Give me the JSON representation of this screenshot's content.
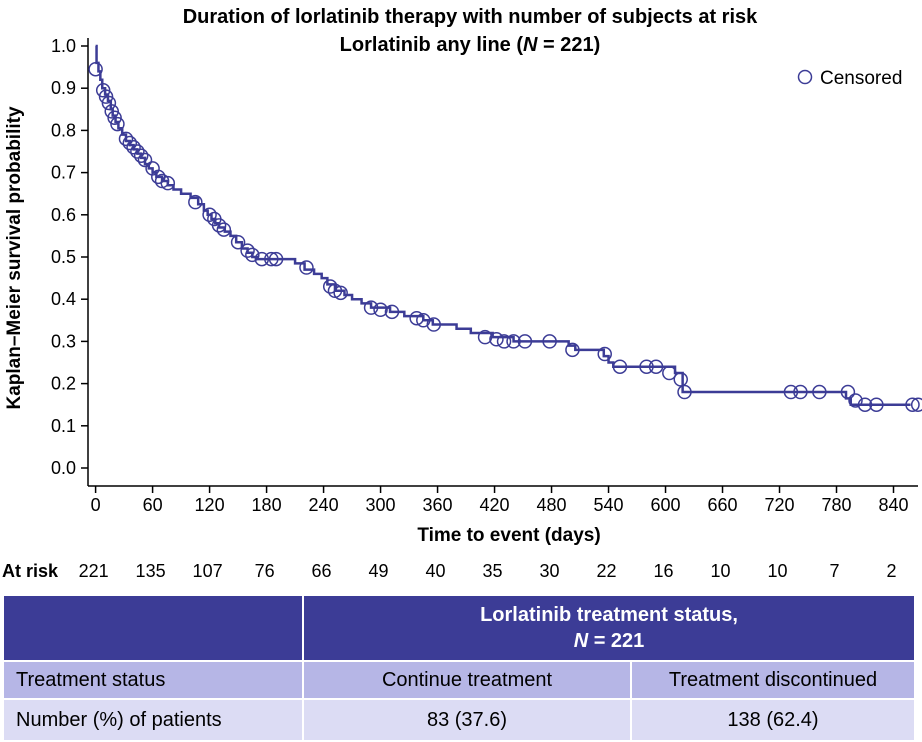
{
  "chart_data": {
    "type": "line",
    "subtype": "kaplan-meier",
    "title": "Duration of lorlatinib therapy with number of subjects at risk",
    "subtitle_prefix": "Lorlatinib any line (",
    "subtitle_n": "N",
    "subtitle_suffix": " = 221)",
    "xlabel": "Time to event (days)",
    "ylabel": "Kaplan–Meier survival probability",
    "xlim": [
      -8,
      870
    ],
    "ylim": [
      0.0,
      1.0
    ],
    "x_ticks": [
      0,
      60,
      120,
      180,
      240,
      300,
      360,
      420,
      480,
      540,
      600,
      660,
      720,
      780,
      840
    ],
    "y_ticks": [
      "0.0",
      "0.1",
      "0.2",
      "0.3",
      "0.4",
      "0.5",
      "0.6",
      "0.7",
      "0.8",
      "0.9",
      "1.0"
    ],
    "legend": {
      "label": "Censored",
      "position": "top-right"
    },
    "line_color": "#3c3c96",
    "curve": [
      [
        0,
        1.0
      ],
      [
        1,
        0.96
      ],
      [
        3,
        0.94
      ],
      [
        5,
        0.92
      ],
      [
        7,
        0.9
      ],
      [
        10,
        0.885
      ],
      [
        13,
        0.87
      ],
      [
        16,
        0.85
      ],
      [
        18,
        0.835
      ],
      [
        21,
        0.82
      ],
      [
        24,
        0.805
      ],
      [
        28,
        0.79
      ],
      [
        32,
        0.775
      ],
      [
        36,
        0.765
      ],
      [
        40,
        0.755
      ],
      [
        44,
        0.745
      ],
      [
        48,
        0.735
      ],
      [
        52,
        0.72
      ],
      [
        56,
        0.71
      ],
      [
        60,
        0.7
      ],
      [
        64,
        0.69
      ],
      [
        70,
        0.68
      ],
      [
        76,
        0.67
      ],
      [
        82,
        0.66
      ],
      [
        90,
        0.65
      ],
      [
        100,
        0.64
      ],
      [
        108,
        0.625
      ],
      [
        114,
        0.61
      ],
      [
        118,
        0.6
      ],
      [
        122,
        0.59
      ],
      [
        126,
        0.58
      ],
      [
        130,
        0.57
      ],
      [
        136,
        0.56
      ],
      [
        142,
        0.55
      ],
      [
        148,
        0.535
      ],
      [
        154,
        0.52
      ],
      [
        160,
        0.51
      ],
      [
        165,
        0.5
      ],
      [
        170,
        0.495
      ],
      [
        210,
        0.485
      ],
      [
        220,
        0.47
      ],
      [
        230,
        0.46
      ],
      [
        238,
        0.45
      ],
      [
        244,
        0.435
      ],
      [
        252,
        0.42
      ],
      [
        262,
        0.41
      ],
      [
        270,
        0.4
      ],
      [
        280,
        0.39
      ],
      [
        290,
        0.38
      ],
      [
        310,
        0.37
      ],
      [
        325,
        0.36
      ],
      [
        345,
        0.35
      ],
      [
        355,
        0.34
      ],
      [
        380,
        0.33
      ],
      [
        395,
        0.32
      ],
      [
        418,
        0.31
      ],
      [
        440,
        0.3
      ],
      [
        498,
        0.29
      ],
      [
        505,
        0.28
      ],
      [
        535,
        0.265
      ],
      [
        540,
        0.25
      ],
      [
        545,
        0.24
      ],
      [
        610,
        0.225
      ],
      [
        618,
        0.18
      ],
      [
        790,
        0.165
      ],
      [
        795,
        0.15
      ],
      [
        858,
        0.15
      ]
    ],
    "censored": [
      [
        0,
        0.945
      ],
      [
        8,
        0.895
      ],
      [
        11,
        0.88
      ],
      [
        14,
        0.865
      ],
      [
        17,
        0.845
      ],
      [
        20,
        0.83
      ],
      [
        23,
        0.815
      ],
      [
        32,
        0.78
      ],
      [
        36,
        0.77
      ],
      [
        40,
        0.76
      ],
      [
        44,
        0.75
      ],
      [
        48,
        0.74
      ],
      [
        52,
        0.73
      ],
      [
        60,
        0.71
      ],
      [
        66,
        0.69
      ],
      [
        70,
        0.68
      ],
      [
        76,
        0.675
      ],
      [
        105,
        0.63
      ],
      [
        120,
        0.6
      ],
      [
        125,
        0.59
      ],
      [
        130,
        0.575
      ],
      [
        135,
        0.565
      ],
      [
        150,
        0.535
      ],
      [
        160,
        0.515
      ],
      [
        165,
        0.505
      ],
      [
        175,
        0.495
      ],
      [
        185,
        0.495
      ],
      [
        190,
        0.495
      ],
      [
        222,
        0.475
      ],
      [
        247,
        0.43
      ],
      [
        252,
        0.42
      ],
      [
        258,
        0.415
      ],
      [
        290,
        0.38
      ],
      [
        300,
        0.375
      ],
      [
        312,
        0.37
      ],
      [
        338,
        0.355
      ],
      [
        345,
        0.35
      ],
      [
        356,
        0.34
      ],
      [
        410,
        0.31
      ],
      [
        422,
        0.305
      ],
      [
        430,
        0.3
      ],
      [
        440,
        0.3
      ],
      [
        452,
        0.3
      ],
      [
        478,
        0.3
      ],
      [
        502,
        0.28
      ],
      [
        536,
        0.27
      ],
      [
        552,
        0.24
      ],
      [
        580,
        0.24
      ],
      [
        590,
        0.24
      ],
      [
        604,
        0.225
      ],
      [
        616,
        0.21
      ],
      [
        620,
        0.18
      ],
      [
        732,
        0.18
      ],
      [
        742,
        0.18
      ],
      [
        762,
        0.18
      ],
      [
        792,
        0.18
      ],
      [
        800,
        0.16
      ],
      [
        810,
        0.15
      ],
      [
        822,
        0.15
      ],
      [
        860,
        0.15
      ],
      [
        866,
        0.15
      ]
    ],
    "at_risk_label": "At risk",
    "at_risk": [
      {
        "x": 0,
        "n": "221"
      },
      {
        "x": 60,
        "n": "135"
      },
      {
        "x": 120,
        "n": "107"
      },
      {
        "x": 180,
        "n": "76"
      },
      {
        "x": 240,
        "n": "66"
      },
      {
        "x": 300,
        "n": "49"
      },
      {
        "x": 360,
        "n": "40"
      },
      {
        "x": 420,
        "n": "35"
      },
      {
        "x": 480,
        "n": "30"
      },
      {
        "x": 540,
        "n": "22"
      },
      {
        "x": 600,
        "n": "16"
      },
      {
        "x": 660,
        "n": "10"
      },
      {
        "x": 720,
        "n": "10"
      },
      {
        "x": 780,
        "n": "7"
      },
      {
        "x": 840,
        "n": "2"
      }
    ]
  },
  "status_table": {
    "header_line1": "Lorlatinib treatment status,",
    "header_n": "N",
    "header_n_suffix": " = 221",
    "row1": {
      "label": "Treatment status",
      "col1": "Continue treatment",
      "col2": "Treatment discontinued"
    },
    "row2": {
      "label": "Number (%) of patients",
      "col1": "83 (37.6)",
      "col2": "138 (62.4)"
    }
  }
}
